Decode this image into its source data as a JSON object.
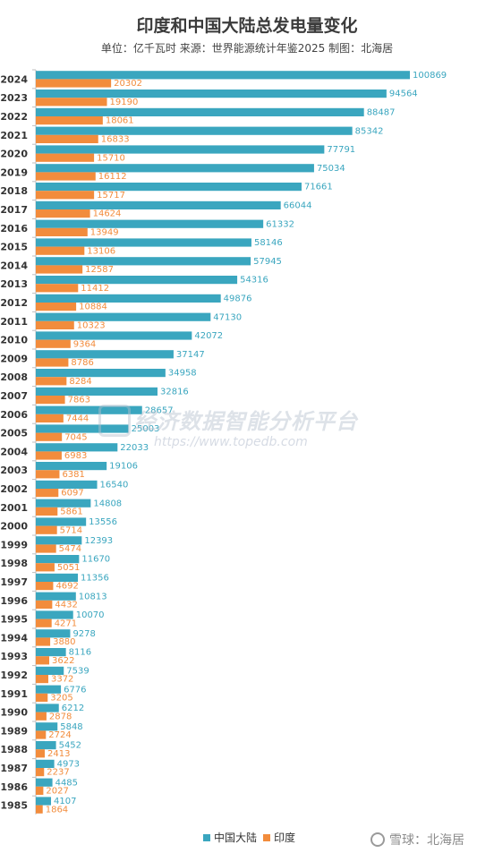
{
  "chart_data": {
    "type": "bar",
    "orientation": "horizontal",
    "title": "印度和中国大陆总发电量变化",
    "subtitle": "单位：亿千瓦时  来源：世界能源统计年鉴2025  制图：北海居",
    "categories": [
      "2024",
      "2023",
      "2022",
      "2021",
      "2020",
      "2019",
      "2018",
      "2017",
      "2016",
      "2015",
      "2014",
      "2013",
      "2012",
      "2011",
      "2010",
      "2009",
      "2008",
      "2007",
      "2006",
      "2005",
      "2004",
      "2003",
      "2002",
      "2001",
      "2000",
      "1999",
      "1998",
      "1997",
      "1996",
      "1995",
      "1994",
      "1993",
      "1992",
      "1991",
      "1990",
      "1989",
      "1988",
      "1987",
      "1986",
      "1985"
    ],
    "series": [
      {
        "name": "中国大陆",
        "color": "#3aa6bf",
        "values": [
          100869,
          94564,
          88487,
          85342,
          77791,
          75034,
          71661,
          66044,
          61332,
          58146,
          57945,
          54316,
          49876,
          47130,
          42072,
          37147,
          34958,
          32816,
          28657,
          25003,
          22033,
          19106,
          16540,
          14808,
          13556,
          12393,
          11670,
          11356,
          10813,
          10070,
          9278,
          8116,
          7539,
          6776,
          6212,
          5848,
          5452,
          4973,
          4485,
          4107
        ]
      },
      {
        "name": "印度",
        "color": "#f28c3c",
        "values": [
          20302,
          19190,
          18061,
          16833,
          15710,
          16112,
          15717,
          14624,
          13949,
          13106,
          12587,
          11412,
          10884,
          10323,
          9364,
          8786,
          8284,
          7863,
          7444,
          7045,
          6983,
          6381,
          6097,
          5861,
          5714,
          5474,
          5051,
          4692,
          4432,
          4271,
          3880,
          3622,
          3372,
          3205,
          2878,
          2724,
          2413,
          2237,
          2027,
          1864
        ]
      }
    ],
    "xlim": [
      0,
      100869
    ],
    "grid": false,
    "legend_position": "bottom"
  },
  "watermark": {
    "main": "经济数据智能分析平台",
    "url": "https://www.topedb.com"
  },
  "credit": "雪球：北海居"
}
